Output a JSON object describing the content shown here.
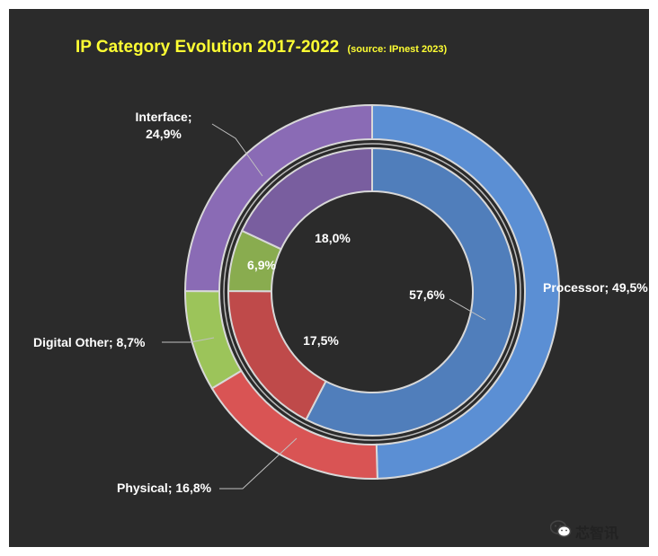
{
  "chart_data": {
    "type": "pie",
    "variant": "doughnut-two-rings",
    "title": "IP Category Evolution 2017-2022",
    "subtitle": "(source: IPnest  2023)",
    "categories": [
      "Processor",
      "Physical",
      "Digital Other",
      "Interface"
    ],
    "colors": {
      "Processor": "#5b8fd4",
      "Physical": "#d95454",
      "Digital Other": "#9cc45a",
      "Interface": "#8a6bb5"
    },
    "series": [
      {
        "ring": "outer",
        "values": [
          49.5,
          16.8,
          8.7,
          24.9
        ],
        "labels": [
          "Processor; 49,5%",
          "Physical; 16,8%",
          "Digital Other; 8,7%",
          "Interface;\n24,9%"
        ]
      },
      {
        "ring": "inner",
        "values": [
          57.6,
          17.5,
          6.9,
          18.0
        ],
        "labels": [
          "57,6%",
          "17,5%",
          "6,9%",
          "18,0%"
        ]
      }
    ]
  },
  "watermark": {
    "text": "芯智讯",
    "icon": "wechat-icon"
  }
}
